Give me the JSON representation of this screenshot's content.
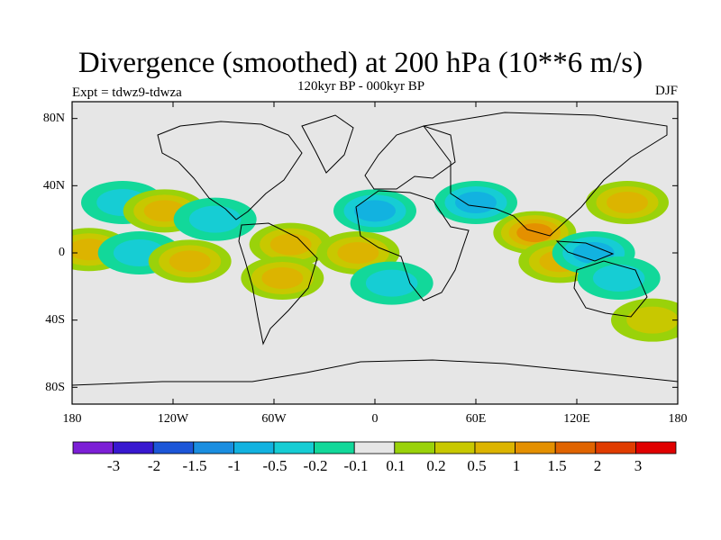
{
  "title": "Divergence (smoothed) at 200 hPa (10**6 m/s)",
  "subtitle": "120kyr BP - 000kyr BP",
  "experiment": "Expt = tdwz9-tdwza",
  "season": "DJF",
  "y_ticks": [
    "80N",
    "40N",
    "0",
    "40S",
    "80S"
  ],
  "x_ticks": [
    "180",
    "120W",
    "60W",
    "0",
    "60E",
    "120E",
    "180"
  ],
  "colorbar": {
    "colors": [
      "#7c1fd6",
      "#3818d0",
      "#1c56d8",
      "#1a8ee0",
      "#12b2e0",
      "#16cdd4",
      "#12d89a",
      "#e6e6e6",
      "#9ad20a",
      "#c8c800",
      "#dcb400",
      "#e49000",
      "#e06400",
      "#e03c00",
      "#e00000"
    ],
    "labels": [
      "-3",
      "-2",
      "-1.5",
      "-1",
      "-0.5",
      "-0.2",
      "-0.1",
      "0.1",
      "0.2",
      "0.5",
      "1",
      "1.5",
      "2",
      "3"
    ]
  },
  "chart_data": {
    "type": "heatmap",
    "title": "Divergence (smoothed) at 200 hPa (10**6 m/s)",
    "subtitle": "120kyr BP - 000kyr BP",
    "xlim": [
      -180,
      180
    ],
    "ylim": [
      -90,
      90
    ],
    "levels": [
      -3,
      -2,
      -1.5,
      -1,
      -0.5,
      -0.2,
      -0.1,
      0.1,
      0.2,
      0.5,
      1,
      1.5,
      2,
      3
    ],
    "anomalies": [
      {
        "lon": -170,
        "lat": 2,
        "value": 0.6
      },
      {
        "lon": -150,
        "lat": 30,
        "value": -0.4
      },
      {
        "lon": -125,
        "lat": 25,
        "value": 0.5
      },
      {
        "lon": -140,
        "lat": 0,
        "value": -0.4
      },
      {
        "lon": -110,
        "lat": -5,
        "value": 0.6
      },
      {
        "lon": -95,
        "lat": 20,
        "value": -0.4
      },
      {
        "lon": -50,
        "lat": 5,
        "value": 0.8
      },
      {
        "lon": -55,
        "lat": -15,
        "value": 0.6
      },
      {
        "lon": -10,
        "lat": 0,
        "value": 0.6
      },
      {
        "lon": 0,
        "lat": 25,
        "value": -0.5
      },
      {
        "lon": 10,
        "lat": -18,
        "value": -0.4
      },
      {
        "lon": 60,
        "lat": 30,
        "value": -0.6
      },
      {
        "lon": 95,
        "lat": 12,
        "value": 1.2
      },
      {
        "lon": 110,
        "lat": -5,
        "value": 0.7
      },
      {
        "lon": 130,
        "lat": 0,
        "value": -0.8
      },
      {
        "lon": 150,
        "lat": 30,
        "value": 0.7
      },
      {
        "lon": 145,
        "lat": -15,
        "value": -0.3
      },
      {
        "lon": 165,
        "lat": -40,
        "value": 0.3
      }
    ]
  }
}
